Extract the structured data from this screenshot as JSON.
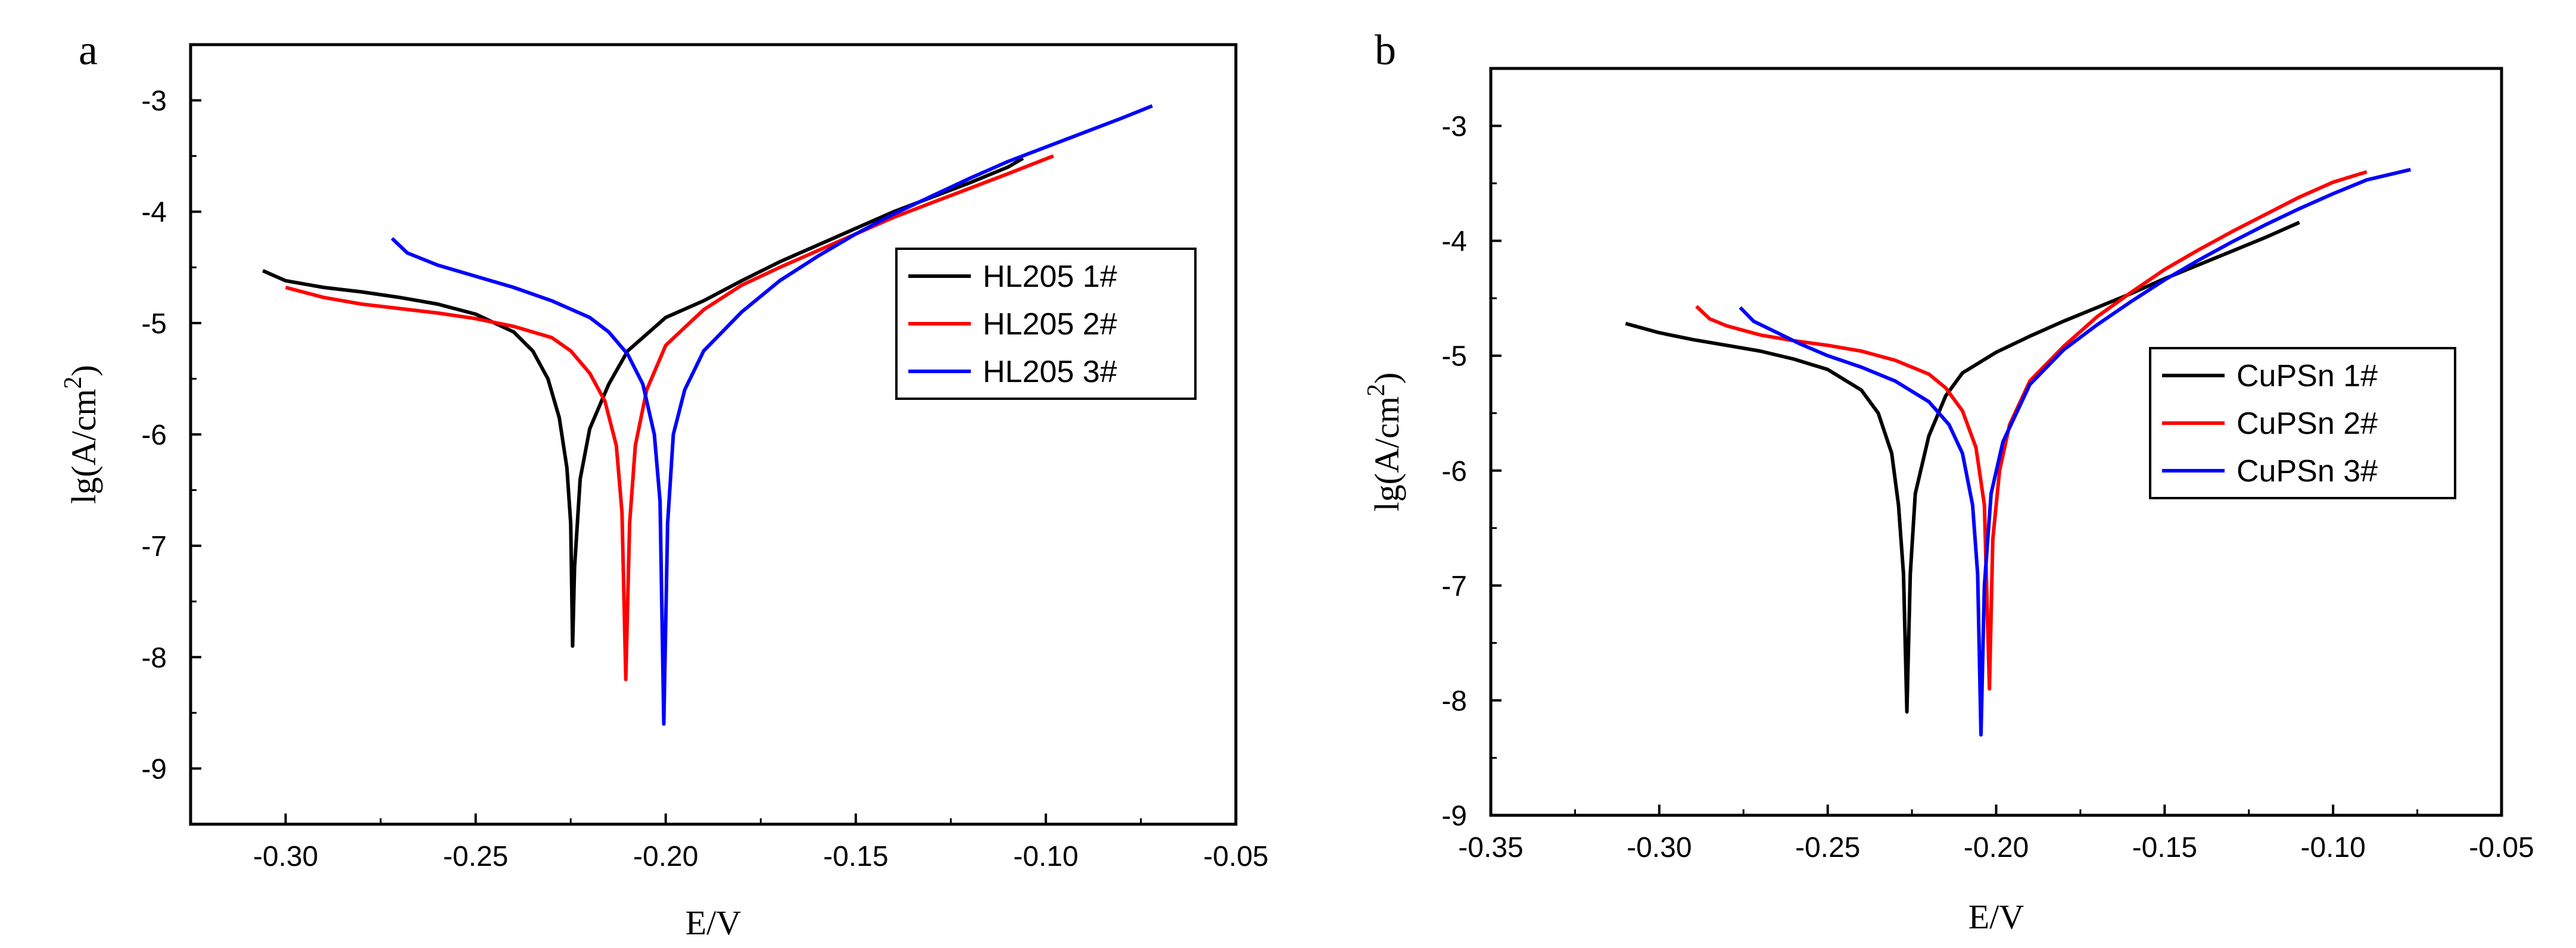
{
  "chart_data": [
    {
      "panel_letter": "a",
      "type": "line",
      "xlabel": "E/V",
      "ylabel": {
        "base": "lg(A/cm",
        "sup": "2",
        "end": ")"
      },
      "xlim": [
        -0.325,
        -0.05
      ],
      "ylim": [
        -9.5,
        -2.5
      ],
      "xticks": [
        -0.3,
        -0.25,
        -0.2,
        -0.15,
        -0.1,
        -0.05
      ],
      "xtick_labels": [
        "-0.30",
        "-0.25",
        "-0.20",
        "-0.15",
        "-0.10",
        "-0.05"
      ],
      "yticks": [
        -9,
        -8,
        -7,
        -6,
        -5,
        -4,
        -3
      ],
      "ytick_labels": [
        "-9",
        "-8",
        "-7",
        "-6",
        "-5",
        "-4",
        "-3"
      ],
      "legend_placement": "right",
      "series": [
        {
          "name": "HL205 1#",
          "color": "#000000",
          "points": [
            [
              -0.306,
              -4.53
            ],
            [
              -0.3,
              -4.62
            ],
            [
              -0.29,
              -4.68
            ],
            [
              -0.28,
              -4.72
            ],
            [
              -0.27,
              -4.77
            ],
            [
              -0.26,
              -4.83
            ],
            [
              -0.25,
              -4.92
            ],
            [
              -0.24,
              -5.08
            ],
            [
              -0.235,
              -5.25
            ],
            [
              -0.231,
              -5.5
            ],
            [
              -0.228,
              -5.85
            ],
            [
              -0.226,
              -6.3
            ],
            [
              -0.225,
              -6.8
            ],
            [
              -0.2245,
              -7.9
            ],
            [
              -0.224,
              -7.2
            ],
            [
              -0.2225,
              -6.4
            ],
            [
              -0.22,
              -5.95
            ],
            [
              -0.215,
              -5.55
            ],
            [
              -0.21,
              -5.25
            ],
            [
              -0.2,
              -4.95
            ],
            [
              -0.19,
              -4.8
            ],
            [
              -0.18,
              -4.62
            ],
            [
              -0.17,
              -4.45
            ],
            [
              -0.16,
              -4.3
            ],
            [
              -0.15,
              -4.15
            ],
            [
              -0.14,
              -4.0
            ],
            [
              -0.13,
              -3.87
            ],
            [
              -0.12,
              -3.74
            ],
            [
              -0.11,
              -3.6
            ],
            [
              -0.106,
              -3.52
            ]
          ]
        },
        {
          "name": "HL205 2#",
          "color": "#ff0000",
          "points": [
            [
              -0.3,
              -4.68
            ],
            [
              -0.29,
              -4.77
            ],
            [
              -0.28,
              -4.83
            ],
            [
              -0.27,
              -4.87
            ],
            [
              -0.26,
              -4.91
            ],
            [
              -0.25,
              -4.96
            ],
            [
              -0.24,
              -5.03
            ],
            [
              -0.23,
              -5.13
            ],
            [
              -0.225,
              -5.25
            ],
            [
              -0.22,
              -5.45
            ],
            [
              -0.216,
              -5.7
            ],
            [
              -0.213,
              -6.1
            ],
            [
              -0.2115,
              -6.7
            ],
            [
              -0.2105,
              -8.2
            ],
            [
              -0.2095,
              -6.8
            ],
            [
              -0.208,
              -6.1
            ],
            [
              -0.205,
              -5.6
            ],
            [
              -0.2,
              -5.2
            ],
            [
              -0.19,
              -4.88
            ],
            [
              -0.18,
              -4.66
            ],
            [
              -0.17,
              -4.5
            ],
            [
              -0.16,
              -4.35
            ],
            [
              -0.15,
              -4.2
            ],
            [
              -0.14,
              -4.05
            ],
            [
              -0.13,
              -3.92
            ],
            [
              -0.12,
              -3.79
            ],
            [
              -0.11,
              -3.66
            ],
            [
              -0.098,
              -3.5
            ]
          ]
        },
        {
          "name": "HL205 3#",
          "color": "#0000ff",
          "points": [
            [
              -0.272,
              -4.24
            ],
            [
              -0.268,
              -4.37
            ],
            [
              -0.26,
              -4.48
            ],
            [
              -0.25,
              -4.58
            ],
            [
              -0.24,
              -4.68
            ],
            [
              -0.23,
              -4.8
            ],
            [
              -0.22,
              -4.95
            ],
            [
              -0.215,
              -5.08
            ],
            [
              -0.21,
              -5.28
            ],
            [
              -0.206,
              -5.55
            ],
            [
              -0.203,
              -6.0
            ],
            [
              -0.2015,
              -6.6
            ],
            [
              -0.2005,
              -8.6
            ],
            [
              -0.1995,
              -6.8
            ],
            [
              -0.198,
              -6.0
            ],
            [
              -0.195,
              -5.6
            ],
            [
              -0.19,
              -5.25
            ],
            [
              -0.18,
              -4.9
            ],
            [
              -0.17,
              -4.62
            ],
            [
              -0.16,
              -4.4
            ],
            [
              -0.15,
              -4.2
            ],
            [
              -0.14,
              -4.02
            ],
            [
              -0.13,
              -3.86
            ],
            [
              -0.12,
              -3.7
            ],
            [
              -0.11,
              -3.55
            ],
            [
              -0.1,
              -3.42
            ],
            [
              -0.09,
              -3.29
            ],
            [
              -0.08,
              -3.16
            ],
            [
              -0.072,
              -3.05
            ]
          ]
        }
      ]
    },
    {
      "panel_letter": "b",
      "type": "line",
      "xlabel": "E/V",
      "ylabel": {
        "base": "lg(A/cm",
        "sup": "2",
        "end": ")"
      },
      "xlim": [
        -0.35,
        -0.05
      ],
      "ylim": [
        -9.0,
        -2.5
      ],
      "xticks": [
        -0.35,
        -0.3,
        -0.25,
        -0.2,
        -0.15,
        -0.1,
        -0.05
      ],
      "xtick_labels": [
        "-0.35",
        "-0.30",
        "-0.25",
        "-0.20",
        "-0.15",
        "-0.10",
        "-0.05"
      ],
      "yticks": [
        -9,
        -8,
        -7,
        -6,
        -5,
        -4,
        -3
      ],
      "ytick_labels": [
        "-9",
        "-8",
        "-7",
        "-6",
        "-5",
        "-4",
        "-3"
      ],
      "legend_placement": "right",
      "series": [
        {
          "name": "CuPSn 1#",
          "color": "#000000",
          "points": [
            [
              -0.31,
              -4.72
            ],
            [
              -0.3,
              -4.8
            ],
            [
              -0.29,
              -4.86
            ],
            [
              -0.28,
              -4.91
            ],
            [
              -0.27,
              -4.96
            ],
            [
              -0.26,
              -5.03
            ],
            [
              -0.25,
              -5.12
            ],
            [
              -0.24,
              -5.3
            ],
            [
              -0.235,
              -5.5
            ],
            [
              -0.231,
              -5.85
            ],
            [
              -0.229,
              -6.3
            ],
            [
              -0.2275,
              -6.9
            ],
            [
              -0.2265,
              -8.1
            ],
            [
              -0.2255,
              -6.9
            ],
            [
              -0.224,
              -6.2
            ],
            [
              -0.22,
              -5.7
            ],
            [
              -0.215,
              -5.35
            ],
            [
              -0.21,
              -5.15
            ],
            [
              -0.2,
              -4.97
            ],
            [
              -0.19,
              -4.83
            ],
            [
              -0.18,
              -4.7
            ],
            [
              -0.17,
              -4.58
            ],
            [
              -0.16,
              -4.46
            ],
            [
              -0.15,
              -4.33
            ],
            [
              -0.14,
              -4.21
            ],
            [
              -0.13,
              -4.09
            ],
            [
              -0.12,
              -3.97
            ],
            [
              -0.11,
              -3.84
            ]
          ]
        },
        {
          "name": "CuPSn 2#",
          "color": "#ff0000",
          "points": [
            [
              -0.289,
              -4.57
            ],
            [
              -0.285,
              -4.68
            ],
            [
              -0.28,
              -4.74
            ],
            [
              -0.27,
              -4.82
            ],
            [
              -0.26,
              -4.87
            ],
            [
              -0.25,
              -4.91
            ],
            [
              -0.24,
              -4.96
            ],
            [
              -0.23,
              -5.04
            ],
            [
              -0.22,
              -5.16
            ],
            [
              -0.215,
              -5.28
            ],
            [
              -0.21,
              -5.48
            ],
            [
              -0.206,
              -5.8
            ],
            [
              -0.2035,
              -6.3
            ],
            [
              -0.202,
              -7.9
            ],
            [
              -0.201,
              -6.6
            ],
            [
              -0.199,
              -6.0
            ],
            [
              -0.196,
              -5.6
            ],
            [
              -0.19,
              -5.22
            ],
            [
              -0.18,
              -4.92
            ],
            [
              -0.17,
              -4.66
            ],
            [
              -0.16,
              -4.45
            ],
            [
              -0.15,
              -4.25
            ],
            [
              -0.14,
              -4.08
            ],
            [
              -0.13,
              -3.92
            ],
            [
              -0.12,
              -3.77
            ],
            [
              -0.11,
              -3.62
            ],
            [
              -0.1,
              -3.49
            ],
            [
              -0.09,
              -3.4
            ]
          ]
        },
        {
          "name": "CuPSn 3#",
          "color": "#0000ff",
          "points": [
            [
              -0.276,
              -4.58
            ],
            [
              -0.272,
              -4.7
            ],
            [
              -0.265,
              -4.8
            ],
            [
              -0.258,
              -4.9
            ],
            [
              -0.25,
              -5.0
            ],
            [
              -0.24,
              -5.1
            ],
            [
              -0.23,
              -5.22
            ],
            [
              -0.22,
              -5.4
            ],
            [
              -0.214,
              -5.6
            ],
            [
              -0.21,
              -5.85
            ],
            [
              -0.207,
              -6.3
            ],
            [
              -0.2055,
              -6.9
            ],
            [
              -0.2045,
              -8.3
            ],
            [
              -0.2035,
              -7.0
            ],
            [
              -0.2015,
              -6.2
            ],
            [
              -0.198,
              -5.75
            ],
            [
              -0.19,
              -5.25
            ],
            [
              -0.18,
              -4.95
            ],
            [
              -0.17,
              -4.73
            ],
            [
              -0.16,
              -4.53
            ],
            [
              -0.15,
              -4.34
            ],
            [
              -0.14,
              -4.17
            ],
            [
              -0.13,
              -4.01
            ],
            [
              -0.12,
              -3.86
            ],
            [
              -0.11,
              -3.72
            ],
            [
              -0.1,
              -3.59
            ],
            [
              -0.09,
              -3.47
            ],
            [
              -0.077,
              -3.38
            ]
          ]
        }
      ]
    }
  ]
}
